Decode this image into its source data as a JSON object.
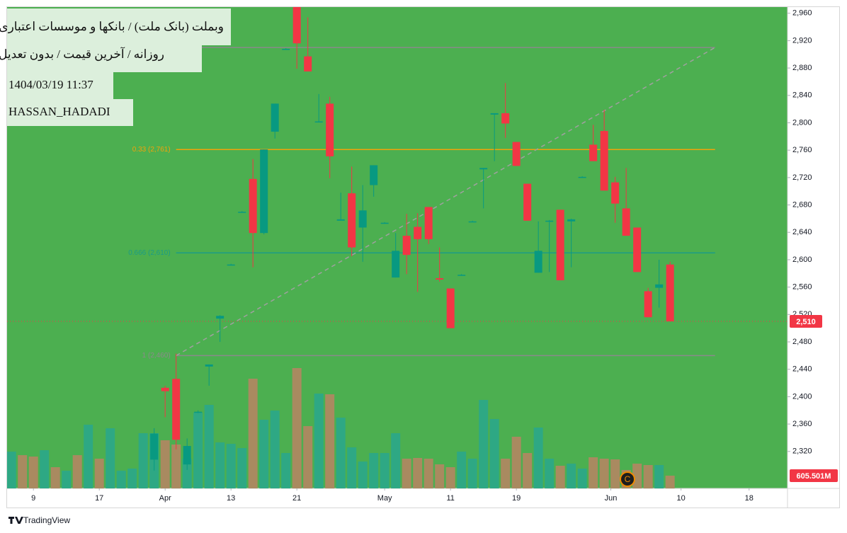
{
  "chart_data": {
    "type": "candlestick",
    "title": "وبملت (بانک ملت) / بانکها و موسسات اعتباری",
    "subtitle": "روزانه / آخرین قیمت / بدون تعدیل",
    "timestamp": "1404/03/19 11:37",
    "author": "HASSAN_HADADI",
    "brand": "TradingView",
    "badge": "C",
    "background": "#4caf50",
    "up_color": "#089981",
    "down_color": "#f23645",
    "ylim": [
      2266,
      2969
    ],
    "yticks": [
      {
        "value": 2320,
        "label": "2,320"
      },
      {
        "value": 2360,
        "label": "2,360"
      },
      {
        "value": 2400,
        "label": "2,400"
      },
      {
        "value": 2440,
        "label": "2,440"
      },
      {
        "value": 2480,
        "label": "2,480"
      },
      {
        "value": 2520,
        "label": "2,520"
      },
      {
        "value": 2560,
        "label": "2,560"
      },
      {
        "value": 2600,
        "label": "2,600"
      },
      {
        "value": 2640,
        "label": "2,640"
      },
      {
        "value": 2680,
        "label": "2,680"
      },
      {
        "value": 2720,
        "label": "2,720"
      },
      {
        "value": 2760,
        "label": "2,760"
      },
      {
        "value": 2800,
        "label": "2,800"
      },
      {
        "value": 2840,
        "label": "2,840"
      },
      {
        "value": 2880,
        "label": "2,880"
      },
      {
        "value": 2920,
        "label": "2,920"
      },
      {
        "value": 2960,
        "label": "2,960"
      }
    ],
    "xlim": [
      -0.4,
      70.7
    ],
    "xticks": [
      {
        "value": 2,
        "label": "9"
      },
      {
        "value": 8,
        "label": "17"
      },
      {
        "value": 14,
        "label": "Apr"
      },
      {
        "value": 20,
        "label": "13"
      },
      {
        "value": 26,
        "label": "21"
      },
      {
        "value": 34,
        "label": "May"
      },
      {
        "value": 40,
        "label": "11"
      },
      {
        "value": 46,
        "label": "19"
      },
      {
        "value": 54.6,
        "label": "Jun"
      },
      {
        "value": 61,
        "label": "10"
      },
      {
        "value": 67.2,
        "label": "18"
      }
    ],
    "grid": false,
    "candles": [
      null,
      null,
      null,
      null,
      null,
      null,
      null,
      null,
      null,
      null,
      null,
      null,
      null,
      {
        "o": 2308,
        "h": 2354,
        "l": 2292,
        "c": 2346
      },
      {
        "o": 2413,
        "h": 2416,
        "l": 2370,
        "c": 2408
      },
      {
        "o": 2426,
        "h": 2463,
        "l": 2323,
        "c": 2337
      },
      {
        "o": 2301,
        "h": 2339,
        "l": 2293,
        "c": 2328
      },
      {
        "o": 2378,
        "h": 2380,
        "l": 2376,
        "c": 2378
      },
      {
        "o": 2444,
        "h": 2447,
        "l": 2416,
        "c": 2447
      },
      {
        "o": 2514,
        "h": 2519,
        "l": 2480,
        "c": 2518
      },
      {
        "o": 2593,
        "h": 2594,
        "l": 2592,
        "c": 2593
      },
      {
        "o": 2670,
        "h": 2671,
        "l": 2669,
        "c": 2670
      },
      {
        "o": 2718,
        "h": 2747,
        "l": 2589,
        "c": 2639
      },
      {
        "o": 2639,
        "h": 2761,
        "l": 2637,
        "c": 2761
      },
      {
        "o": 2787,
        "h": 2828,
        "l": 2777,
        "c": 2828
      },
      {
        "o": 2908,
        "h": 2909,
        "l": 2907,
        "c": 2908
      },
      {
        "o": 2975,
        "h": 2990,
        "l": 2879,
        "c": 2916
      },
      {
        "o": 2897,
        "h": 2954,
        "l": 2875,
        "c": 2875
      },
      {
        "o": 2802,
        "h": 2842,
        "l": 2801,
        "c": 2802
      },
      {
        "o": 2828,
        "h": 2838,
        "l": 2719,
        "c": 2751
      },
      {
        "o": 2657,
        "h": 2698,
        "l": 2657,
        "c": 2659
      },
      {
        "o": 2697,
        "h": 2736,
        "l": 2605,
        "c": 2618
      },
      {
        "o": 2647,
        "h": 2709,
        "l": 2597,
        "c": 2672
      },
      {
        "o": 2709,
        "h": 2738,
        "l": 2692,
        "c": 2738
      },
      {
        "o": 2654,
        "h": 2655,
        "l": 2653,
        "c": 2654
      },
      {
        "o": 2574,
        "h": 2639,
        "l": 2574,
        "c": 2613
      },
      {
        "o": 2635,
        "h": 2667,
        "l": 2579,
        "c": 2607
      },
      {
        "o": 2648,
        "h": 2668,
        "l": 2553,
        "c": 2630
      },
      {
        "o": 2677,
        "h": 2677,
        "l": 2623,
        "c": 2630
      },
      {
        "o": 2573,
        "h": 2618,
        "l": 2568,
        "c": 2571
      },
      {
        "o": 2558,
        "h": 2558,
        "l": 2500,
        "c": 2500
      },
      {
        "o": 2578,
        "h": 2579,
        "l": 2577,
        "c": 2578
      },
      {
        "o": 2656,
        "h": 2657,
        "l": 2655,
        "c": 2656
      },
      {
        "o": 2732,
        "h": 2734,
        "l": 2675,
        "c": 2734
      },
      {
        "o": 2812,
        "h": 2814,
        "l": 2744,
        "c": 2814
      },
      {
        "o": 2814,
        "h": 2858,
        "l": 2778,
        "c": 2799
      },
      {
        "o": 2772,
        "h": 2772,
        "l": 2737,
        "c": 2737
      },
      {
        "o": 2711,
        "h": 2711,
        "l": 2657,
        "c": 2657
      },
      {
        "o": 2581,
        "h": 2656,
        "l": 2581,
        "c": 2613
      },
      {
        "o": 2657,
        "h": 2658,
        "l": 2582,
        "c": 2657
      },
      {
        "o": 2673,
        "h": 2673,
        "l": 2570,
        "c": 2570
      },
      {
        "o": 2656,
        "h": 2660,
        "l": 2589,
        "c": 2659
      },
      {
        "o": 2721,
        "h": 2722,
        "l": 2720,
        "c": 2721
      },
      {
        "o": 2768,
        "h": 2797,
        "l": 2744,
        "c": 2744
      },
      {
        "o": 2788,
        "h": 2819,
        "l": 2701,
        "c": 2701
      },
      {
        "o": 2713,
        "h": 2721,
        "l": 2654,
        "c": 2682
      },
      {
        "o": 2675,
        "h": 2734,
        "l": 2635,
        "c": 2635
      },
      {
        "o": 2647,
        "h": 2647,
        "l": 2582,
        "c": 2582
      },
      {
        "o": 2554,
        "h": 2559,
        "l": 2516,
        "c": 2516
      },
      {
        "o": 2559,
        "h": 2600,
        "l": 2530,
        "c": 2564
      },
      {
        "o": 2593,
        "h": 2597,
        "l": 2510,
        "c": 2510
      }
    ],
    "volume": [
      1749,
      1581,
      1514,
      1817,
      1009,
      841,
      1581,
      3028,
      1413,
      2859,
      841,
      942,
      2624,
      2624,
      2288,
      2086,
      1413,
      3600,
      3970,
      2187,
      2119,
      1917,
      5214,
      3263,
      3700,
      1682,
      5719,
      2960,
      4508,
      4474,
      3364,
      1951,
      1278,
      1682,
      1682,
      2624,
      1413,
      1447,
      1413,
      1144,
      1009,
      1749,
      1413,
      4205,
      3297,
      1413,
      2456,
      1682,
      2893,
      1413,
      1076,
      1177,
      942,
      1480,
      1413,
      1379,
      875,
      1177,
      1110,
      1110,
      605.501
    ],
    "volume_ylim": [
      0,
      22876
    ],
    "volume_colors": [
      "#2ea884",
      "#a98a60",
      "#a98a60",
      "#2ea884",
      "#a98a60",
      "#2ea884",
      "#a98a60",
      "#2ea884",
      "#a98a60",
      "#2ea884",
      "#2ea884",
      "#2ea884",
      "#2ea884",
      "#2ea884",
      "#a98a60",
      "#a98a60",
      "#2ea884",
      "#2ea884",
      "#2ea884",
      "#2ea884",
      "#2ea884",
      "#2ea884",
      "#a98a60",
      "#2ea884",
      "#2ea884",
      "#2ea884",
      "#a98a60",
      "#a98a60",
      "#2ea884",
      "#a98a60",
      "#2ea884",
      "#2ea884",
      "#2ea884",
      "#2ea884",
      "#2ea884",
      "#2ea884",
      "#a98a60",
      "#a98a60",
      "#a98a60",
      "#a98a60",
      "#a98a60",
      "#2ea884",
      "#2ea884",
      "#2ea884",
      "#2ea884",
      "#a98a60",
      "#a98a60",
      "#a98a60",
      "#2ea884",
      "#2ea884",
      "#a98a60",
      "#2ea884",
      "#2ea884",
      "#a98a60",
      "#a98a60",
      "#a98a60",
      "#a98a60",
      "#a98a60",
      "#a98a60",
      "#2ea884",
      "#a98a60"
    ],
    "last_volume_label": {
      "value": 605.501,
      "label": "605.501M"
    },
    "last_price": {
      "value": 2510,
      "label": "2,510",
      "color": "#f23645"
    },
    "fib": {
      "x": [
        15,
        64.1
      ],
      "levels": [
        {
          "value": 2910,
          "color": "#8a8a8a"
        },
        {
          "value": 2761,
          "label": "0.33 (2,761)",
          "color": "#f0a30a"
        },
        {
          "value": 2610,
          "label": "0.666 (2,610)",
          "color": "#1b9c85"
        },
        {
          "value": 2460,
          "label": "1 (2,460)",
          "color": "#8a8a8a"
        }
      ]
    },
    "trend_line": {
      "x": [
        15,
        64.1
      ],
      "y": [
        2460,
        2910
      ],
      "color": "#a0a0a0"
    }
  }
}
